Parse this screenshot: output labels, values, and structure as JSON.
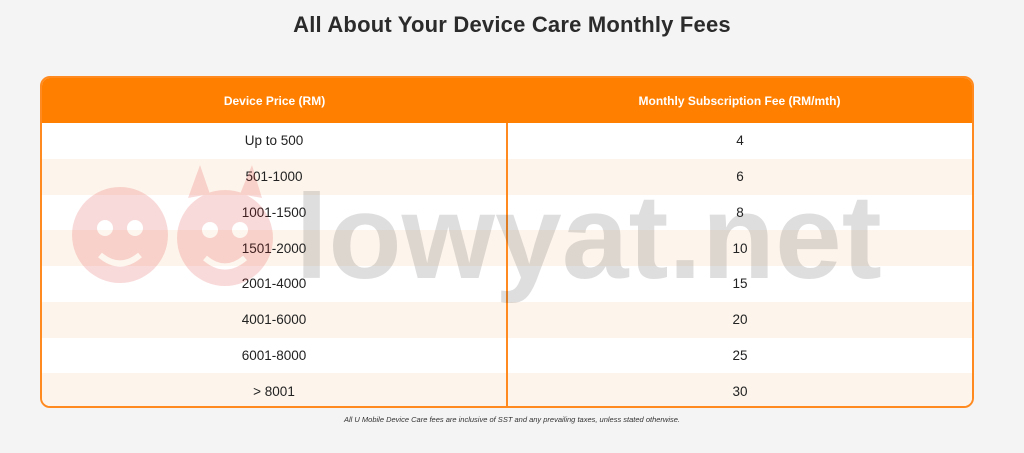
{
  "title": "All About Your Device Care Monthly Fees",
  "table": {
    "headers": [
      "Device Price (RM)",
      "Monthly Subscription Fee (RM/mth)"
    ],
    "rows": [
      {
        "price": "Up to 500",
        "fee": "4"
      },
      {
        "price": "501-1000",
        "fee": "6"
      },
      {
        "price": "1001-1500",
        "fee": "8"
      },
      {
        "price": "1501-2000",
        "fee": "10"
      },
      {
        "price": "2001-4000",
        "fee": "15"
      },
      {
        "price": "4001-6000",
        "fee": "20"
      },
      {
        "price": "6001-8000",
        "fee": "25"
      },
      {
        "price": "> 8001",
        "fee": "30"
      }
    ]
  },
  "watermark": {
    "text": "lowyat.net"
  },
  "footnote": "All U Mobile Device Care fees are inclusive of SST and any prevailing taxes, unless stated otherwise.",
  "colors": {
    "accent": "#ff7f00",
    "border": "#ff8a1f",
    "alt_row": "#fdf5ec"
  }
}
